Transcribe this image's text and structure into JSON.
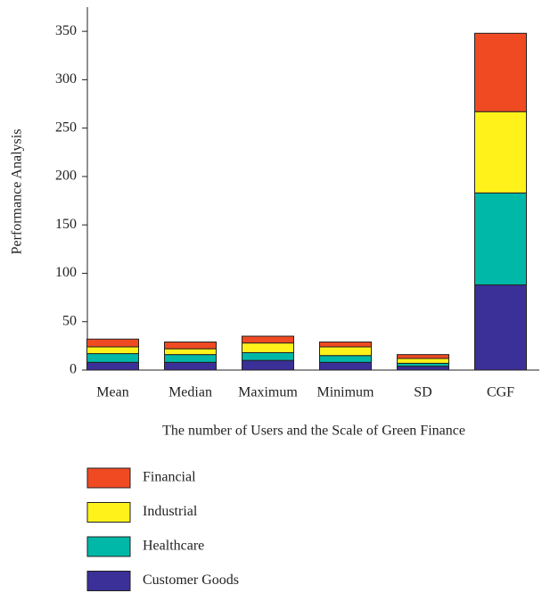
{
  "chart_data": {
    "type": "stacked_bar",
    "xlabel": "The number of Users and the Scale of Green Finance",
    "ylabel": "Performance Analysis",
    "categories": [
      "Mean",
      "Median",
      "Maximum",
      "Minimum",
      "SD",
      "CGF"
    ],
    "series": [
      {
        "name": "Customer Goods",
        "color": "#3b2f98",
        "values": [
          8,
          8,
          10,
          8,
          4,
          88
        ]
      },
      {
        "name": "Healthcare",
        "color": "#00b8a8",
        "values": [
          9,
          8,
          8,
          7,
          3,
          95
        ]
      },
      {
        "name": "Industrial",
        "color": "#fff21a",
        "values": [
          7,
          6,
          10,
          9,
          5,
          84
        ]
      },
      {
        "name": "Financial",
        "color": "#f04a23",
        "values": [
          8,
          7,
          7,
          5,
          4,
          81
        ]
      }
    ],
    "ylim": [
      0,
      375
    ],
    "yticks": [
      0,
      50,
      100,
      150,
      200,
      250,
      300,
      350
    ]
  }
}
